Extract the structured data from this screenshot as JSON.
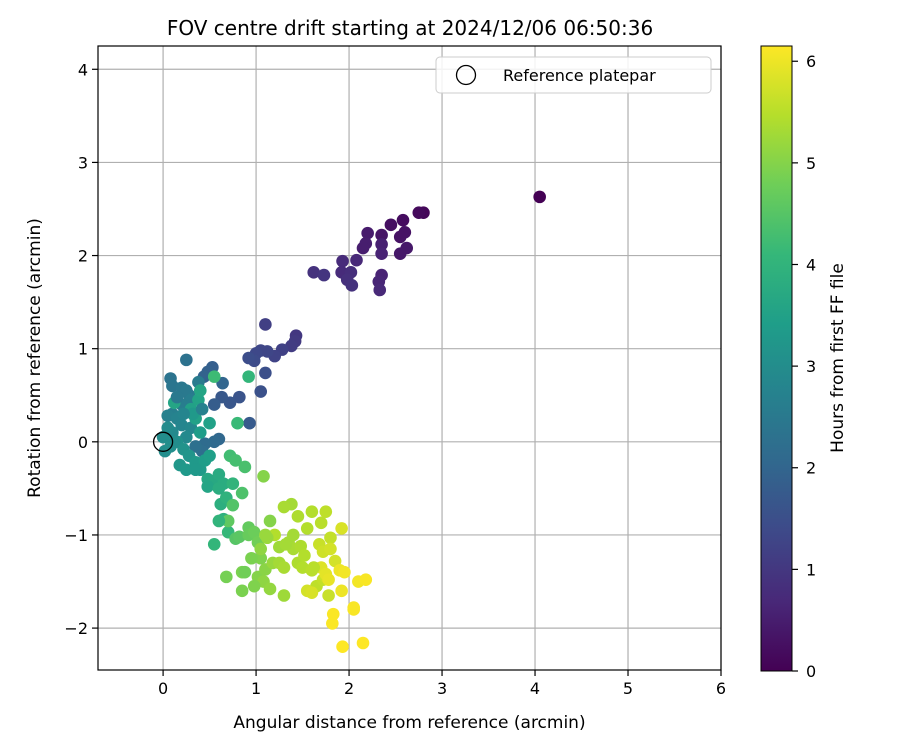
{
  "chart_data": {
    "type": "scatter",
    "title": "FOV centre drift starting at 2024/12/06 06:50:36",
    "xlabel": "Angular distance from reference (arcmin)",
    "ylabel": "Rotation from reference (arcmin)",
    "xlim": [
      -0.7,
      6.0
    ],
    "ylim": [
      -2.45,
      4.25
    ],
    "xticks": [
      0,
      1,
      2,
      3,
      4,
      5,
      6
    ],
    "yticks": [
      -2,
      -1,
      0,
      1,
      2,
      3,
      4
    ],
    "grid": true,
    "legend": {
      "placement": "top-right",
      "entries": [
        "Reference platepar"
      ]
    },
    "reference_point": {
      "x": 0,
      "y": 0
    },
    "colorbar": {
      "label": "Hours from first FF file",
      "range": [
        0,
        6.15
      ],
      "ticks": [
        0,
        1,
        2,
        3,
        4,
        5,
        6
      ],
      "colormap": "viridis"
    },
    "series": [
      {
        "values": [
          [
            4.05,
            2.63,
            0.0
          ],
          [
            2.8,
            2.46,
            0.1
          ],
          [
            2.75,
            2.46,
            0.15
          ],
          [
            2.58,
            2.38,
            0.2
          ],
          [
            2.45,
            2.33,
            0.25
          ],
          [
            2.6,
            2.25,
            0.3
          ],
          [
            2.55,
            2.2,
            0.3
          ],
          [
            2.35,
            2.22,
            0.35
          ],
          [
            2.62,
            2.08,
            0.4
          ],
          [
            2.55,
            2.02,
            0.4
          ],
          [
            2.2,
            2.24,
            0.45
          ],
          [
            2.18,
            2.13,
            0.5
          ],
          [
            2.15,
            2.08,
            0.5
          ],
          [
            2.35,
            2.12,
            0.55
          ],
          [
            2.35,
            2.02,
            0.6
          ],
          [
            2.35,
            1.79,
            0.6
          ],
          [
            2.32,
            1.72,
            0.65
          ],
          [
            2.33,
            1.63,
            0.7
          ],
          [
            2.08,
            1.95,
            0.7
          ],
          [
            1.93,
            1.94,
            0.75
          ],
          [
            1.92,
            1.82,
            0.75
          ],
          [
            2.02,
            1.82,
            0.8
          ],
          [
            1.98,
            1.74,
            0.85
          ],
          [
            2.03,
            1.68,
            0.9
          ],
          [
            1.62,
            1.82,
            0.9
          ],
          [
            1.73,
            1.79,
            0.95
          ],
          [
            1.43,
            1.14,
            1.0
          ],
          [
            1.42,
            1.08,
            1.05
          ],
          [
            1.38,
            1.03,
            1.1
          ],
          [
            1.1,
            1.26,
            1.15
          ],
          [
            1.28,
            0.99,
            1.2
          ],
          [
            1.2,
            0.92,
            1.25
          ],
          [
            1.12,
            0.97,
            1.3
          ],
          [
            1.05,
            0.98,
            1.3
          ],
          [
            1.0,
            0.95,
            1.35
          ],
          [
            0.98,
            0.87,
            1.4
          ],
          [
            0.92,
            0.9,
            1.45
          ],
          [
            1.1,
            0.74,
            1.5
          ],
          [
            1.05,
            0.54,
            1.55
          ],
          [
            0.82,
            0.48,
            1.6
          ],
          [
            0.72,
            0.42,
            1.65
          ],
          [
            0.63,
            0.48,
            1.7
          ],
          [
            0.93,
            0.2,
            1.75
          ],
          [
            0.55,
            0.4,
            1.8
          ],
          [
            0.53,
            0.8,
            1.85
          ],
          [
            0.48,
            0.75,
            1.9
          ],
          [
            0.44,
            0.7,
            1.95
          ],
          [
            0.64,
            0.63,
            2.0
          ],
          [
            0.6,
            0.03,
            2.05
          ],
          [
            0.55,
            0.0,
            2.1
          ],
          [
            0.45,
            -0.02,
            2.15
          ],
          [
            0.42,
            -0.1,
            2.2
          ],
          [
            0.35,
            -0.05,
            2.25
          ],
          [
            0.25,
            0.88,
            2.3
          ],
          [
            0.08,
            0.68,
            2.35
          ],
          [
            0.1,
            0.6,
            2.4
          ],
          [
            0.2,
            0.58,
            2.45
          ],
          [
            0.28,
            0.5,
            2.5
          ],
          [
            0.25,
            0.55,
            2.5
          ],
          [
            0.38,
            0.64,
            2.55
          ],
          [
            0.3,
            0.45,
            2.6
          ],
          [
            0.2,
            0.4,
            2.6
          ],
          [
            0.1,
            0.3,
            2.65
          ],
          [
            0.05,
            0.28,
            2.7
          ],
          [
            0.15,
            0.25,
            2.75
          ],
          [
            0.2,
            0.18,
            2.8
          ],
          [
            0.3,
            0.15,
            2.85
          ],
          [
            0.25,
            0.05,
            2.9
          ],
          [
            0.1,
            0.1,
            2.9
          ],
          [
            0.05,
            0.15,
            2.95
          ],
          [
            0.0,
            0.05,
            3.0
          ],
          [
            0.02,
            -0.1,
            3.0
          ],
          [
            0.08,
            -0.05,
            3.05
          ],
          [
            0.15,
            0.0,
            3.1
          ],
          [
            0.22,
            -0.08,
            3.15
          ],
          [
            0.28,
            -0.15,
            3.2
          ],
          [
            0.18,
            -0.25,
            3.25
          ],
          [
            0.25,
            -0.3,
            3.3
          ],
          [
            0.35,
            -0.22,
            3.3
          ],
          [
            0.4,
            -0.3,
            3.35
          ],
          [
            0.45,
            -0.2,
            3.4
          ],
          [
            0.5,
            -0.15,
            3.45
          ],
          [
            0.35,
            0.25,
            3.5
          ],
          [
            0.3,
            0.35,
            3.5
          ],
          [
            0.38,
            0.45,
            3.55
          ],
          [
            0.4,
            0.55,
            3.6
          ],
          [
            0.12,
            0.42,
            3.6
          ],
          [
            0.48,
            -0.4,
            3.65
          ],
          [
            0.55,
            -0.42,
            3.7
          ],
          [
            0.6,
            -0.35,
            3.75
          ],
          [
            0.65,
            -0.45,
            3.8
          ],
          [
            0.62,
            -0.67,
            3.85
          ],
          [
            0.65,
            -0.83,
            3.9
          ],
          [
            0.68,
            -0.6,
            3.95
          ],
          [
            0.75,
            -0.45,
            4.0
          ],
          [
            0.92,
            0.7,
            4.05
          ],
          [
            0.55,
            -1.1,
            4.05
          ],
          [
            0.7,
            -0.97,
            4.1
          ],
          [
            0.8,
            0.2,
            4.15
          ],
          [
            0.55,
            0.7,
            4.2
          ],
          [
            0.72,
            -0.15,
            4.25
          ],
          [
            0.78,
            -0.2,
            4.3
          ],
          [
            0.88,
            -0.27,
            4.35
          ],
          [
            0.85,
            -0.55,
            4.4
          ],
          [
            0.75,
            -0.68,
            4.45
          ],
          [
            0.78,
            -1.04,
            4.5
          ],
          [
            0.82,
            -1.02,
            4.55
          ],
          [
            0.7,
            -0.85,
            4.6
          ],
          [
            0.92,
            -0.92,
            4.65
          ],
          [
            0.92,
            -1.0,
            4.7
          ],
          [
            0.98,
            -0.97,
            4.75
          ],
          [
            1.02,
            -1.08,
            4.8
          ],
          [
            0.68,
            -1.45,
            4.85
          ],
          [
            0.85,
            -1.6,
            4.9
          ],
          [
            0.85,
            -1.4,
            4.9
          ],
          [
            1.05,
            -1.25,
            4.95
          ],
          [
            1.02,
            -1.45,
            5.0
          ],
          [
            1.1,
            -1.37,
            5.05
          ],
          [
            1.08,
            -1.5,
            5.1
          ],
          [
            1.15,
            -1.58,
            5.15
          ],
          [
            1.18,
            -1.3,
            5.2
          ],
          [
            1.3,
            -1.65,
            5.25
          ],
          [
            1.25,
            -1.3,
            5.3
          ],
          [
            1.3,
            -1.35,
            5.35
          ],
          [
            1.45,
            -1.3,
            5.4
          ],
          [
            1.5,
            -1.35,
            5.45
          ],
          [
            1.6,
            -1.38,
            5.5
          ],
          [
            1.65,
            -1.55,
            5.55
          ],
          [
            1.72,
            -1.48,
            5.6
          ],
          [
            1.78,
            -1.65,
            5.65
          ],
          [
            1.75,
            -1.45,
            5.7
          ],
          [
            1.55,
            -1.6,
            5.75
          ],
          [
            1.6,
            -1.62,
            5.8
          ],
          [
            1.38,
            -0.67,
            5.3
          ],
          [
            1.3,
            -0.7,
            5.35
          ],
          [
            1.45,
            -0.8,
            5.4
          ],
          [
            1.2,
            -1.0,
            5.45
          ],
          [
            1.15,
            -0.85,
            5.0
          ],
          [
            1.08,
            -0.37,
            5.0
          ],
          [
            1.12,
            -1.03,
            5.2
          ],
          [
            1.05,
            -1.15,
            5.1
          ],
          [
            1.25,
            -1.13,
            5.25
          ],
          [
            1.35,
            -1.08,
            5.3
          ],
          [
            1.4,
            -1.15,
            5.35
          ],
          [
            1.48,
            -1.12,
            5.4
          ],
          [
            1.55,
            -0.93,
            5.45
          ],
          [
            1.6,
            -0.75,
            5.45
          ],
          [
            1.7,
            -0.87,
            5.5
          ],
          [
            1.75,
            -0.75,
            5.55
          ],
          [
            1.8,
            -1.03,
            5.6
          ],
          [
            1.68,
            -1.1,
            5.65
          ],
          [
            1.72,
            -1.18,
            5.7
          ],
          [
            1.8,
            -1.15,
            5.75
          ],
          [
            1.85,
            -1.28,
            5.75
          ],
          [
            1.92,
            -0.93,
            5.8
          ],
          [
            1.7,
            -1.35,
            5.85
          ],
          [
            1.75,
            -1.42,
            5.9
          ],
          [
            1.78,
            -1.48,
            5.95
          ],
          [
            1.9,
            -1.38,
            6.0
          ],
          [
            1.92,
            -1.6,
            6.0
          ],
          [
            1.95,
            -1.4,
            6.05
          ],
          [
            2.1,
            -1.5,
            6.05
          ],
          [
            2.18,
            -1.48,
            6.1
          ],
          [
            2.05,
            -1.8,
            6.1
          ],
          [
            2.05,
            -1.78,
            6.1
          ],
          [
            1.83,
            -1.85,
            6.12
          ],
          [
            1.82,
            -1.95,
            6.12
          ],
          [
            1.93,
            -2.2,
            6.15
          ],
          [
            2.15,
            -2.16,
            6.15
          ],
          [
            1.4,
            -1.0,
            5.3
          ],
          [
            1.32,
            -1.1,
            5.3
          ],
          [
            1.52,
            -1.22,
            5.45
          ],
          [
            1.62,
            -1.35,
            5.5
          ],
          [
            1.1,
            -1.0,
            5.2
          ],
          [
            0.95,
            -1.25,
            4.9
          ],
          [
            0.88,
            -1.4,
            4.8
          ],
          [
            0.98,
            -1.55,
            4.95
          ],
          [
            0.6,
            -0.85,
            4.0
          ],
          [
            0.5,
            0.2,
            3.5
          ],
          [
            0.4,
            0.1,
            3.4
          ],
          [
            0.32,
            0.3,
            3.3
          ],
          [
            0.15,
            0.48,
            2.5
          ],
          [
            0.12,
            0.0,
            3.0
          ],
          [
            0.22,
            0.3,
            2.8
          ],
          [
            0.42,
            0.35,
            2.7
          ],
          [
            0.35,
            -0.3,
            3.3
          ],
          [
            0.48,
            -0.48,
            3.6
          ],
          [
            0.6,
            -0.5,
            3.8
          ]
        ]
      }
    ]
  }
}
